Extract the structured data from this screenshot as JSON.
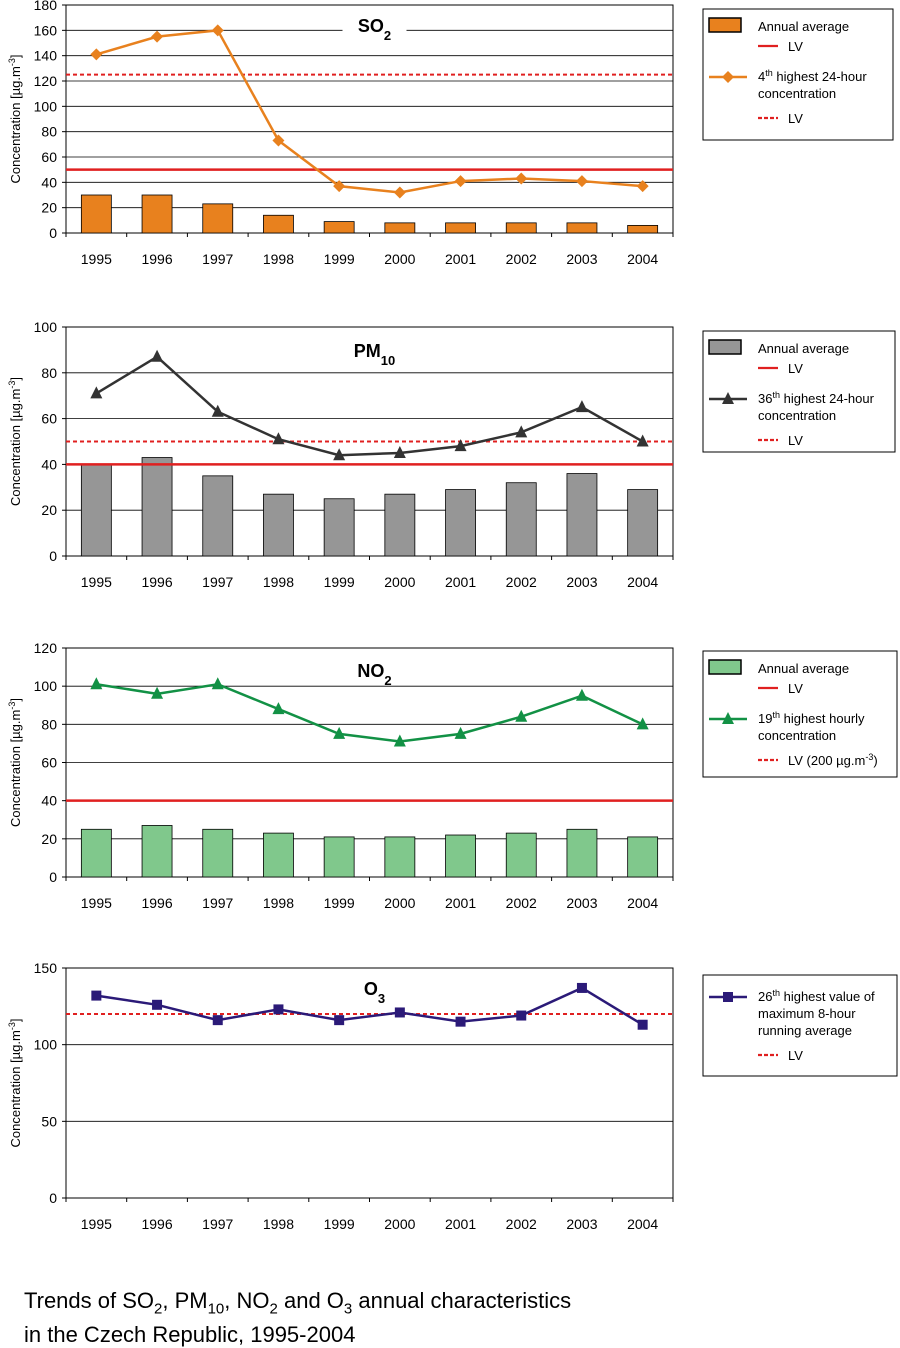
{
  "caption": {
    "line1_parts": [
      {
        "t": "Trends of SO"
      },
      {
        "t": "2",
        "sub": true
      },
      {
        "t": ", PM"
      },
      {
        "t": "10",
        "sub": true
      },
      {
        "t": ", NO"
      },
      {
        "t": "2",
        "sub": true
      },
      {
        "t": " and O"
      },
      {
        "t": "3",
        "sub": true
      },
      {
        "t": " annual characteristics"
      }
    ],
    "line2": "in the Czech Republic, 1995-2004"
  },
  "chart_data": [
    {
      "id": "so2",
      "type": "bar",
      "title": "SO",
      "title_sub": "2",
      "ylabel": "Concentration [µg.m",
      "ylabel_sup": "-3",
      "ylabel_end": "]",
      "categories": [
        "1995",
        "1996",
        "1997",
        "1998",
        "1999",
        "2000",
        "2001",
        "2002",
        "2003",
        "2004"
      ],
      "ylim": [
        0,
        180
      ],
      "yticks": [
        0,
        20,
        40,
        60,
        80,
        100,
        120,
        140,
        160,
        180
      ],
      "grid": true,
      "bar_color": "#e8811e",
      "line_color": "#e8811e",
      "marker": "diamond",
      "series": [
        {
          "kind": "bar",
          "values": [
            30,
            30,
            23,
            14,
            9,
            8,
            8,
            8,
            8,
            6
          ]
        },
        {
          "kind": "line",
          "values": [
            141,
            155,
            160,
            73,
            37,
            32,
            41,
            43,
            41,
            37
          ]
        }
      ],
      "limits": [
        {
          "value": 50,
          "style": "solid",
          "color": "#e02020"
        },
        {
          "value": 125,
          "style": "dashed",
          "color": "#e02020"
        }
      ],
      "legend": {
        "position": "right",
        "items": [
          {
            "kind": "bar",
            "text": "Annual average"
          },
          {
            "kind": "solid",
            "text": "LV"
          },
          {
            "kind": "line",
            "text_pre": "4",
            "text_sup": "th",
            "text_post": " highest 24-hour",
            "text2": "concentration"
          },
          {
            "kind": "dashed",
            "text": "LV"
          }
        ]
      }
    },
    {
      "id": "pm10",
      "type": "bar",
      "title": "PM",
      "title_sub": "10",
      "ylabel": "Concentration [µg.m",
      "ylabel_sup": "-3",
      "ylabel_end": "]",
      "categories": [
        "1995",
        "1996",
        "1997",
        "1998",
        "1999",
        "2000",
        "2001",
        "2002",
        "2003",
        "2004"
      ],
      "ylim": [
        0,
        100
      ],
      "yticks": [
        0,
        20,
        40,
        60,
        80,
        100
      ],
      "grid": true,
      "bar_color": "#969696",
      "line_color": "#333333",
      "marker": "triangle",
      "series": [
        {
          "kind": "bar",
          "values": [
            40,
            43,
            35,
            27,
            25,
            27,
            29,
            32,
            36,
            29
          ]
        },
        {
          "kind": "line",
          "values": [
            71,
            87,
            63,
            51,
            44,
            45,
            48,
            54,
            65,
            50
          ]
        }
      ],
      "limits": [
        {
          "value": 40,
          "style": "solid",
          "color": "#e02020"
        },
        {
          "value": 50,
          "style": "dashed",
          "color": "#e02020"
        }
      ],
      "legend": {
        "position": "right",
        "items": [
          {
            "kind": "bar",
            "text": "Annual average"
          },
          {
            "kind": "solid",
            "text": "LV"
          },
          {
            "kind": "line",
            "text_pre": "36",
            "text_sup": "th",
            "text_post": " highest 24-hour",
            "text2": "concentration"
          },
          {
            "kind": "dashed",
            "text": "LV"
          }
        ]
      }
    },
    {
      "id": "no2",
      "type": "bar",
      "title": "NO",
      "title_sub": "2",
      "ylabel": "Concentration [µg.m",
      "ylabel_sup": "-3",
      "ylabel_end": "]",
      "categories": [
        "1995",
        "1996",
        "1997",
        "1998",
        "1999",
        "2000",
        "2001",
        "2002",
        "2003",
        "2004"
      ],
      "ylim": [
        0,
        120
      ],
      "yticks": [
        0,
        20,
        40,
        60,
        80,
        100,
        120
      ],
      "grid": true,
      "bar_color": "#80c88c",
      "line_color": "#129145",
      "marker": "triangle",
      "series": [
        {
          "kind": "bar",
          "values": [
            25,
            27,
            25,
            23,
            21,
            21,
            22,
            23,
            25,
            21
          ]
        },
        {
          "kind": "line",
          "values": [
            101,
            96,
            101,
            88,
            75,
            71,
            75,
            84,
            95,
            80
          ]
        }
      ],
      "limits": [
        {
          "value": 40,
          "style": "solid",
          "color": "#e02020"
        }
      ],
      "legend": {
        "position": "right",
        "items": [
          {
            "kind": "bar",
            "text": "Annual average"
          },
          {
            "kind": "solid",
            "text": "LV"
          },
          {
            "kind": "line",
            "text_pre": "19",
            "text_sup": "th",
            "text_post": " highest hourly",
            "text2": "concentration"
          },
          {
            "kind": "dashed",
            "text": "LV (200 µg.m",
            "text_sup2": "-3",
            "text_end": ")"
          }
        ]
      }
    },
    {
      "id": "o3",
      "type": "line",
      "title": "O",
      "title_sub": "3",
      "ylabel": "Concentration [µg.m",
      "ylabel_sup": "-3",
      "ylabel_end": "]",
      "categories": [
        "1995",
        "1996",
        "1997",
        "1998",
        "1999",
        "2000",
        "2001",
        "2002",
        "2003",
        "2004"
      ],
      "ylim": [
        0,
        150
      ],
      "yticks": [
        0,
        50,
        100,
        150
      ],
      "grid": true,
      "line_color": "#2b1a78",
      "marker": "square",
      "series": [
        {
          "kind": "line",
          "values": [
            132,
            126,
            116,
            123,
            116,
            121,
            115,
            119,
            137,
            113
          ]
        }
      ],
      "limits": [
        {
          "value": 120,
          "style": "dashed",
          "color": "#e02020"
        }
      ],
      "legend": {
        "position": "right",
        "items": [
          {
            "kind": "line",
            "text_pre": "26",
            "text_sup": "th",
            "text_post": " highest value of",
            "text2": "maximum 8-hour",
            "text3": "running average"
          },
          {
            "kind": "dashed",
            "text": "LV"
          }
        ]
      }
    }
  ]
}
